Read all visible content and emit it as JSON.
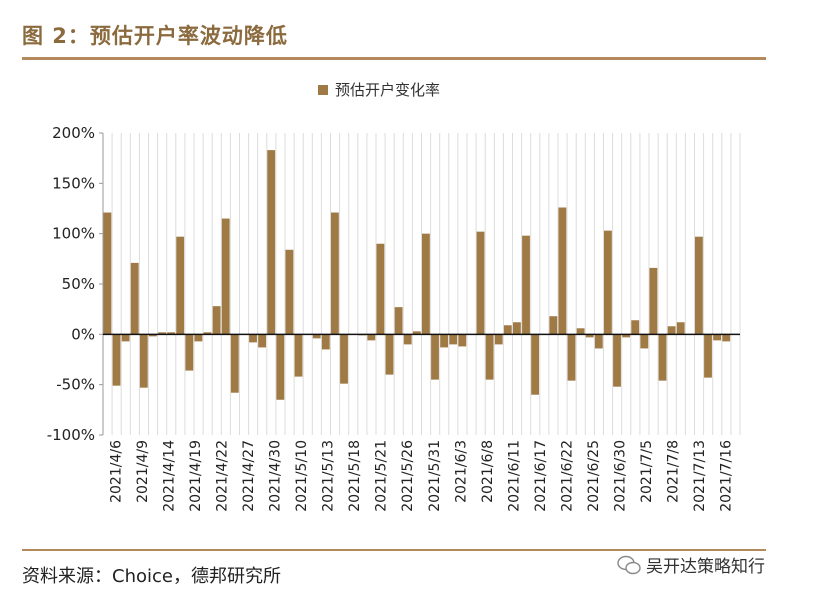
{
  "figure": {
    "title": "图 2：预估开户率波动降低",
    "source": "资料来源：Choice，德邦研究所",
    "watermark": "吴开达策略知行"
  },
  "colors": {
    "bar": "#A07A45",
    "accent": "#8B6A3E",
    "rule": "#B48A5C"
  },
  "chart_data": {
    "type": "bar",
    "legend": "预估开户变化率",
    "legend_position": "top-center",
    "ylim": [
      -100,
      200
    ],
    "yticks": [
      200,
      150,
      100,
      50,
      0,
      -50,
      -100
    ],
    "ytick_labels": [
      "200%",
      "150%",
      "100%",
      "50%",
      "0%",
      "-50%",
      "-100%"
    ],
    "grid": "vertical",
    "xtick_labels": [
      "2021/4/6",
      "2021/4/9",
      "2021/4/14",
      "2021/4/19",
      "2021/4/22",
      "2021/4/27",
      "2021/4/30",
      "2021/5/10",
      "2021/5/13",
      "2021/5/18",
      "2021/5/21",
      "2021/5/26",
      "2021/5/31",
      "2021/6/3",
      "2021/6/8",
      "2021/6/11",
      "2021/6/17",
      "2021/6/22",
      "2021/6/25",
      "2021/6/30",
      "2021/7/5",
      "2021/7/8",
      "2021/7/13",
      "2021/7/16"
    ],
    "values": [
      121,
      -51,
      -7,
      71,
      -53,
      -2,
      2,
      2,
      97,
      -36,
      -7,
      2,
      28,
      115,
      -58,
      0,
      -8,
      -13,
      183,
      -65,
      84,
      -42,
      0,
      -4,
      -15,
      121,
      -49,
      0,
      -1,
      -6,
      90,
      -40,
      27,
      -10,
      3,
      100,
      -45,
      -13,
      -10,
      -12,
      0,
      102,
      -45,
      -10,
      9,
      12,
      98,
      -60,
      0,
      18,
      126,
      -46,
      6,
      -3,
      -14,
      103,
      -52,
      -3,
      14,
      -14,
      66,
      -46,
      8,
      12,
      0,
      97,
      -43,
      -6,
      -7,
      0
    ]
  }
}
